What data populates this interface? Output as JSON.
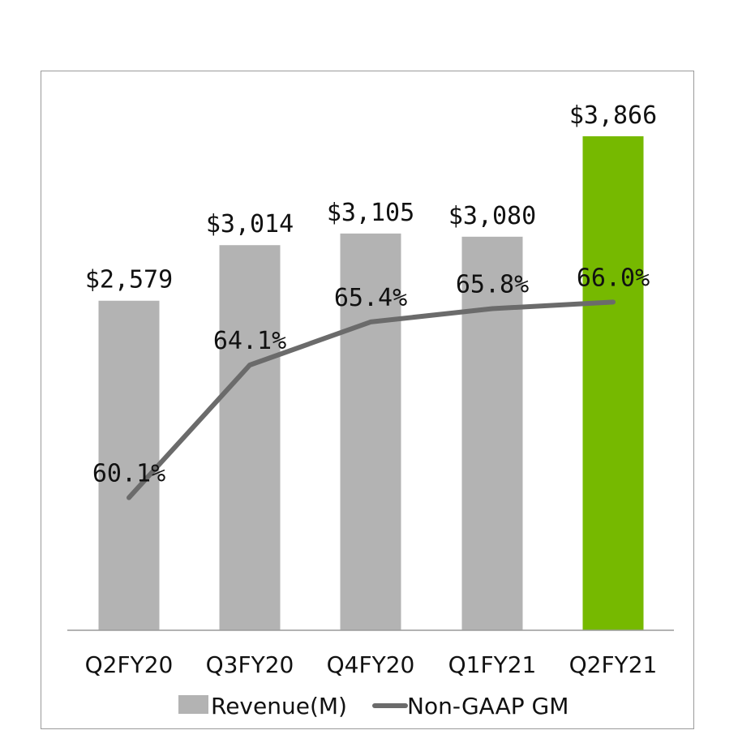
{
  "chart_data": {
    "type": "bar",
    "categories": [
      "Q2FY20",
      "Q3FY20",
      "Q4FY20",
      "Q1FY21",
      "Q2FY21"
    ],
    "series": [
      {
        "name": "Revenue(M)",
        "kind": "bar",
        "values": [
          2579,
          3014,
          3105,
          3080,
          3866
        ],
        "labels": [
          "$2,579",
          "$3,014",
          "$3,105",
          "$3,080",
          "$3,866"
        ],
        "colors": [
          "#b3b3b3",
          "#b3b3b3",
          "#b3b3b3",
          "#b3b3b3",
          "#76b900"
        ]
      },
      {
        "name": "Non-GAAP GM",
        "kind": "line",
        "values": [
          60.1,
          64.1,
          65.4,
          65.8,
          66.0
        ],
        "labels": [
          "60.1%",
          "64.1%",
          "65.4%",
          "65.8%",
          "66.0%"
        ],
        "color": "#6b6b6b"
      }
    ],
    "ylim_revenue": [
      0,
      3866
    ],
    "ylim_margin": [
      56.1,
      71.0
    ],
    "grid": false,
    "legend": "bottom"
  }
}
